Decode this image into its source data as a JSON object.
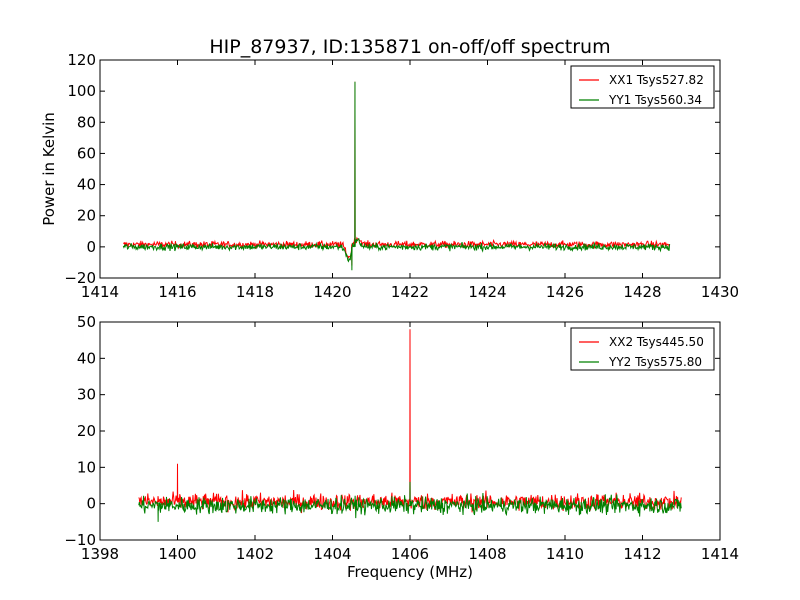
{
  "chart_data": [
    {
      "type": "line",
      "title": "HIP_87937, ID:135871 on-off/off spectrum",
      "xlabel": "",
      "ylabel": "Power in Kelvin",
      "xlim": [
        1414,
        1430
      ],
      "ylim": [
        -20,
        120
      ],
      "xticks": [
        1414,
        1416,
        1418,
        1420,
        1422,
        1424,
        1426,
        1428,
        1430
      ],
      "yticks": [
        -20,
        0,
        20,
        40,
        60,
        80,
        100,
        120
      ],
      "legend_position": "top-right",
      "grid": false,
      "series": [
        {
          "name": "XX1 Tsys527.82",
          "color": "#ff0000",
          "x_range": [
            1414.6,
            1428.7
          ],
          "baseline": 1.5,
          "noise": 2.0,
          "features": [
            {
              "x": 1420.58,
              "y": 106
            },
            {
              "x": 1420.5,
              "y": -12
            }
          ]
        },
        {
          "name": "YY1 Tsys560.34",
          "color": "#008000",
          "x_range": [
            1414.6,
            1428.7
          ],
          "baseline": 0.0,
          "noise": 2.0,
          "features": [
            {
              "x": 1420.58,
              "y": 106
            },
            {
              "x": 1420.5,
              "y": -15
            }
          ]
        }
      ]
    },
    {
      "type": "line",
      "title": "",
      "xlabel": "Frequency (MHz)",
      "ylabel": "",
      "xlim": [
        1398,
        1414
      ],
      "ylim": [
        -10,
        50
      ],
      "xticks": [
        1398,
        1400,
        1402,
        1404,
        1406,
        1408,
        1410,
        1412,
        1414
      ],
      "yticks": [
        -10,
        0,
        10,
        20,
        30,
        40,
        50
      ],
      "legend_position": "top-right",
      "grid": false,
      "series": [
        {
          "name": "XX2 Tsys445.50",
          "color": "#ff0000",
          "x_range": [
            1399.0,
            1413.0
          ],
          "baseline": 0.5,
          "noise": 2.2,
          "features": [
            {
              "x": 1400.0,
              "y": 11
            },
            {
              "x": 1406.0,
              "y": 48
            }
          ]
        },
        {
          "name": "YY2 Tsys575.80",
          "color": "#008000",
          "x_range": [
            1399.0,
            1413.0
          ],
          "baseline": -0.5,
          "noise": 2.2,
          "features": [
            {
              "x": 1406.0,
              "y": 6
            },
            {
              "x": 1399.5,
              "y": -5
            }
          ]
        }
      ]
    }
  ]
}
